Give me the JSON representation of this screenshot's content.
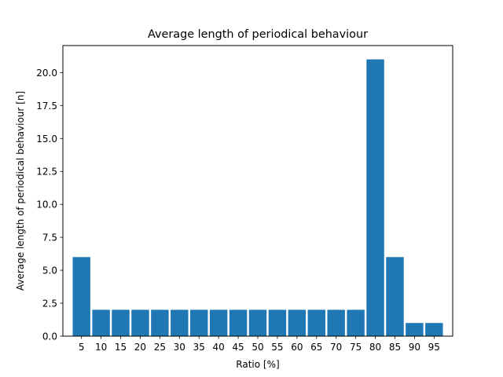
{
  "chart_data": {
    "type": "bar",
    "title": "Average length of periodical behaviour",
    "xlabel": "Ratio [%]",
    "ylabel": "Average length of periodical behaviour [n]",
    "categories": [
      "5",
      "10",
      "15",
      "20",
      "25",
      "30",
      "35",
      "40",
      "45",
      "50",
      "55",
      "60",
      "65",
      "70",
      "75",
      "80",
      "85",
      "90",
      "95"
    ],
    "values": [
      6,
      2,
      2,
      2,
      2,
      2,
      2,
      2,
      2,
      2,
      2,
      2,
      2,
      2,
      2,
      21,
      6,
      1,
      1
    ],
    "ylim": [
      0,
      22.05
    ],
    "yticks": [
      "0.0",
      "2.5",
      "5.0",
      "7.5",
      "10.0",
      "12.5",
      "15.0",
      "17.5",
      "20.0"
    ],
    "bar_color": "#1f77b4",
    "grid": false,
    "legend": "none"
  }
}
